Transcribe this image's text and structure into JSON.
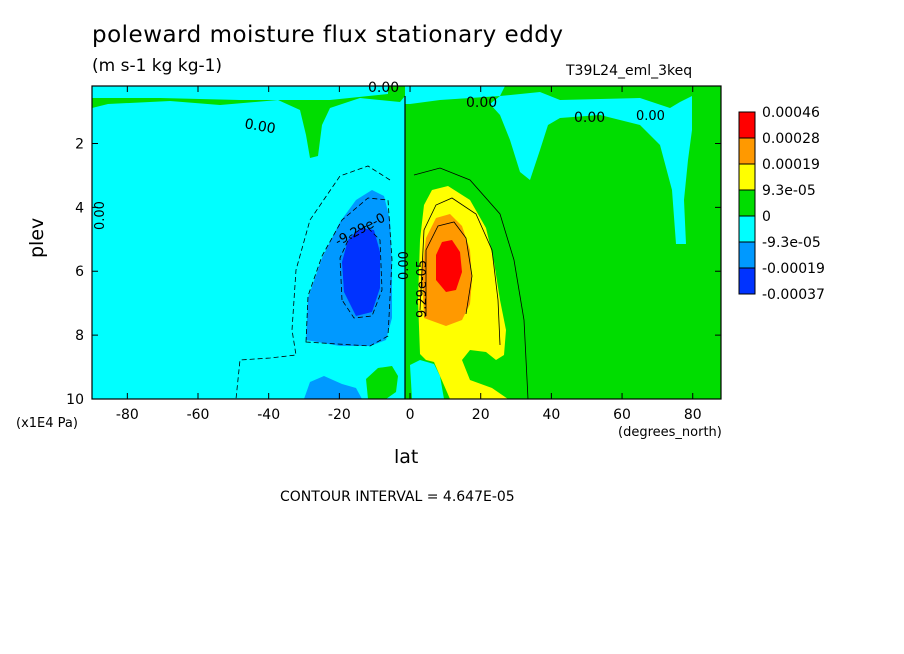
{
  "chart_data": {
    "type": "heatmap",
    "title": "poleward moisture flux stationary eddy",
    "units": "(m s-1 kg kg-1)",
    "dataset": "T39L24_eml_3keq",
    "xlabel": "lat",
    "x_units": "(degrees_north)",
    "ylabel": "plev",
    "y_units": "(x1E4 Pa)",
    "xlim": [
      -90,
      88
    ],
    "ylim": [
      10,
      0.2
    ],
    "x_ticks": [
      "-80",
      "-60",
      "-40",
      "-20",
      "0",
      "20",
      "40",
      "60",
      "80"
    ],
    "x_tick_values": [
      -80,
      -60,
      -40,
      -20,
      0,
      20,
      40,
      60,
      80
    ],
    "y_ticks": [
      "2",
      "4",
      "6",
      "8",
      "10"
    ],
    "y_tick_values": [
      2,
      4,
      6,
      8,
      10
    ],
    "contour_interval_text": "CONTOUR INTERVAL = 4.647E-05",
    "contour_labels": [
      "0.00",
      "0.00",
      "0.00",
      "0.00",
      "0.00",
      "0.00",
      "-9.29e-0",
      "9.29e-05",
      "0.00"
    ],
    "colorbar": {
      "labels": [
        "0.00046",
        "0.00028",
        "0.00019",
        "9.3e-05",
        "0",
        "-9.3e-05",
        "-0.00019",
        "-0.00037"
      ],
      "colors": [
        "#ff0000",
        "#ff9900",
        "#ffff00",
        "#00dd00",
        "#00ffff",
        "#0099ff",
        "#0033ff"
      ]
    },
    "regions": [
      {
        "name": "southern-negative",
        "level": "-9.3e-05",
        "color": "#00ffff"
      },
      {
        "name": "southern-negative-core",
        "level": "-0.00019",
        "color": "#0099ff"
      },
      {
        "name": "southern-min",
        "level": "-0.00037",
        "color": "#0033ff"
      },
      {
        "name": "northern-positive",
        "level": "9.3e-05",
        "color": "#ffff00"
      },
      {
        "name": "northern-positive-core",
        "level": "0.00019",
        "color": "#ff9900"
      },
      {
        "name": "northern-max",
        "level": "0.00046",
        "color": "#ff0000"
      },
      {
        "name": "background",
        "level": "0",
        "color": "#00dd00"
      }
    ]
  }
}
